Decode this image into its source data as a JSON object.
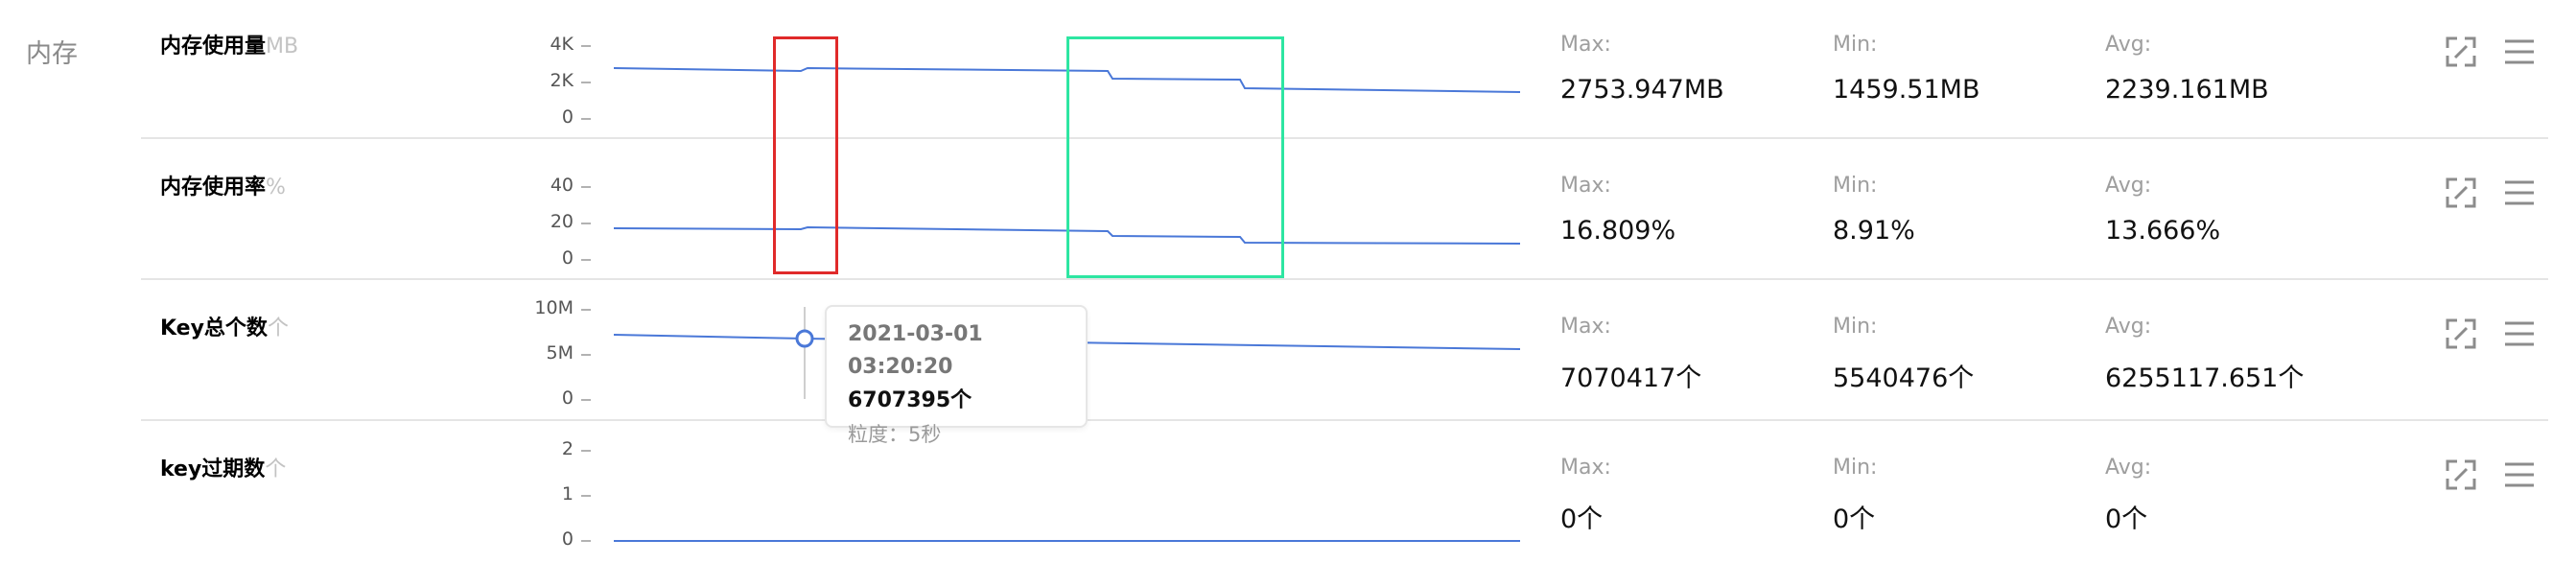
{
  "section_label": "内存",
  "metrics": [
    {
      "title": "内存使用量",
      "unit": "MB",
      "yticks": [
        "4K",
        "2K",
        "0"
      ],
      "stats": {
        "max_label": "Max:",
        "max": "2753.947MB",
        "min_label": "Min:",
        "min": "1459.51MB",
        "avg_label": "Avg:",
        "avg": "2239.161MB"
      }
    },
    {
      "title": "内存使用率",
      "unit": "%",
      "yticks": [
        "40",
        "20",
        "0"
      ],
      "stats": {
        "max_label": "Max:",
        "max": "16.809%",
        "min_label": "Min:",
        "min": "8.91%",
        "avg_label": "Avg:",
        "avg": "13.666%"
      }
    },
    {
      "title": "Key总个数",
      "unit": "个",
      "yticks": [
        "10M",
        "5M",
        "0"
      ],
      "stats": {
        "max_label": "Max:",
        "max": "7070417个",
        "min_label": "Min:",
        "min": "5540476个",
        "avg_label": "Avg:",
        "avg": "6255117.651个"
      }
    },
    {
      "title": "key过期数",
      "unit": "个",
      "yticks": [
        "2",
        "1",
        "0"
      ],
      "stats": {
        "max_label": "Max:",
        "max": "0个",
        "min_label": "Min:",
        "min": "0个",
        "avg_label": "Avg:",
        "avg": "0个"
      }
    }
  ],
  "tooltip": {
    "time": "2021-03-01 03:20:20",
    "value": "6707395个",
    "granularity": "粒度：5秒"
  },
  "colors": {
    "line": "#4a78d8",
    "highlight_red": "#e02a2a",
    "highlight_green": "#2ee6a2",
    "icon": "#8c8c8c"
  },
  "icons": {
    "expand": "expand-icon",
    "menu": "menu-icon"
  }
}
